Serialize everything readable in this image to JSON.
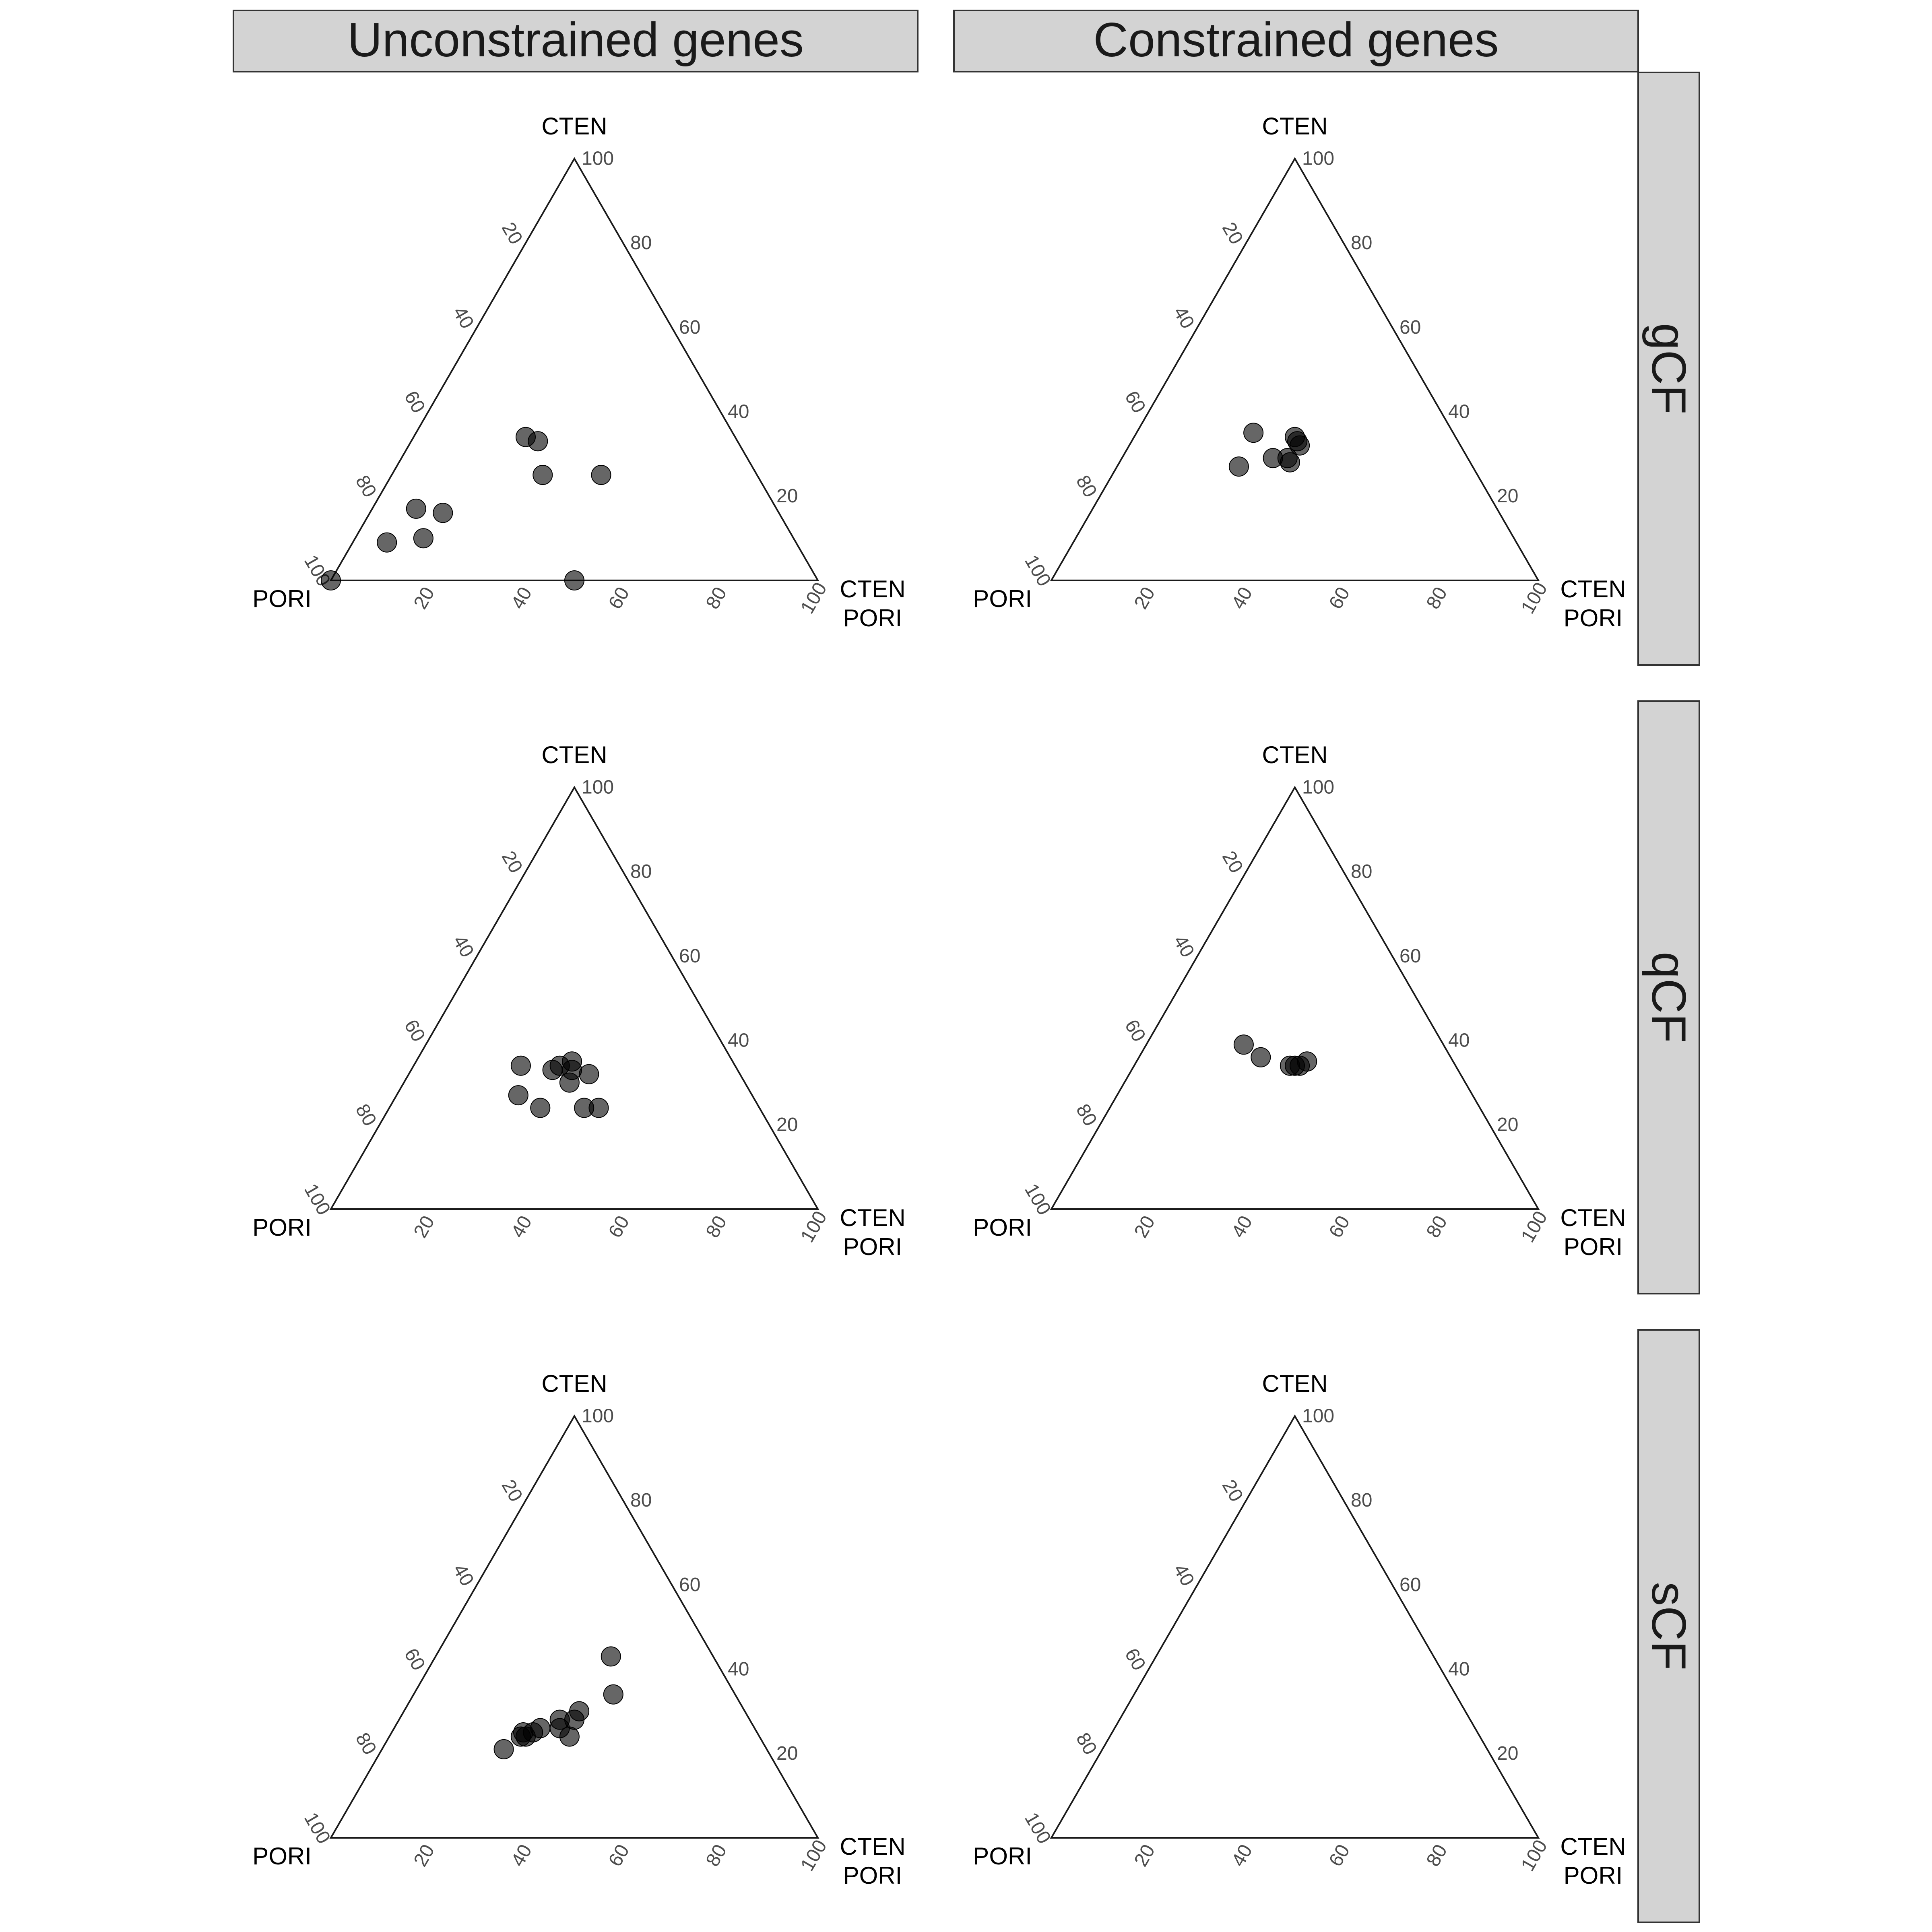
{
  "chart_data": {
    "type": "scatter",
    "subtype": "ternary",
    "column_labels": [
      "Unconstrained genes",
      "Constrained genes"
    ],
    "row_labels": [
      "gCF",
      "qCF",
      "sCF"
    ],
    "vertex_labels": {
      "top": "CTEN",
      "left": "PORI",
      "right_top": "CTEN",
      "right_bottom": "PORI"
    },
    "ticks": [
      "20",
      "40",
      "60",
      "80",
      "100"
    ],
    "point_color": "#000000",
    "point_opacity": 0.6,
    "component_order": [
      "top",
      "right",
      "left"
    ],
    "panels": [
      {
        "row": "gCF",
        "column": "Unconstrained genes",
        "points": [
          [
            0,
            0,
            100
          ],
          [
            9,
            7,
            84
          ],
          [
            10,
            14,
            76
          ],
          [
            17,
            9,
            74
          ],
          [
            16,
            15,
            69
          ],
          [
            25,
            43,
            32
          ],
          [
            25,
            31,
            44
          ],
          [
            33,
            26,
            41
          ],
          [
            34,
            23,
            43
          ],
          [
            0,
            50,
            50
          ]
        ]
      },
      {
        "row": "gCF",
        "column": "Constrained genes",
        "points": [
          [
            34,
            33,
            33
          ],
          [
            32,
            35,
            33
          ],
          [
            33,
            34,
            33
          ],
          [
            27,
            25,
            48
          ],
          [
            29,
            31,
            40
          ],
          [
            28,
            35,
            37
          ],
          [
            29,
            34,
            37
          ],
          [
            35,
            24,
            41
          ]
        ]
      },
      {
        "row": "qCF",
        "column": "Unconstrained genes",
        "points": [
          [
            34,
            22,
            44
          ],
          [
            34,
            30,
            36
          ],
          [
            33,
            33,
            34
          ],
          [
            35,
            32,
            33
          ],
          [
            32,
            37,
            31
          ],
          [
            33,
            29,
            38
          ],
          [
            30,
            34,
            36
          ],
          [
            27,
            25,
            48
          ],
          [
            24,
            31,
            45
          ],
          [
            24,
            40,
            36
          ],
          [
            24,
            43,
            33
          ]
        ]
      },
      {
        "row": "qCF",
        "column": "Constrained genes",
        "points": [
          [
            39,
            20,
            41
          ],
          [
            36,
            25,
            39
          ],
          [
            34,
            32,
            34
          ],
          [
            34,
            33,
            33
          ],
          [
            34,
            34,
            32
          ],
          [
            35,
            35,
            30
          ]
        ]
      },
      {
        "row": "sCF",
        "column": "Unconstrained genes",
        "points": [
          [
            43,
            36,
            21
          ],
          [
            34,
            41,
            25
          ],
          [
            28,
            33,
            39
          ],
          [
            30,
            36,
            34
          ],
          [
            28,
            36,
            36
          ],
          [
            26,
            34,
            40
          ],
          [
            24,
            37,
            39
          ],
          [
            26,
            30,
            44
          ],
          [
            25,
            27,
            48
          ],
          [
            24,
            28,
            48
          ],
          [
            24,
            27,
            49
          ],
          [
            25,
            29,
            46
          ],
          [
            21,
            25,
            54
          ]
        ]
      },
      {
        "row": "sCF",
        "column": "Constrained genes",
        "points": []
      }
    ]
  }
}
